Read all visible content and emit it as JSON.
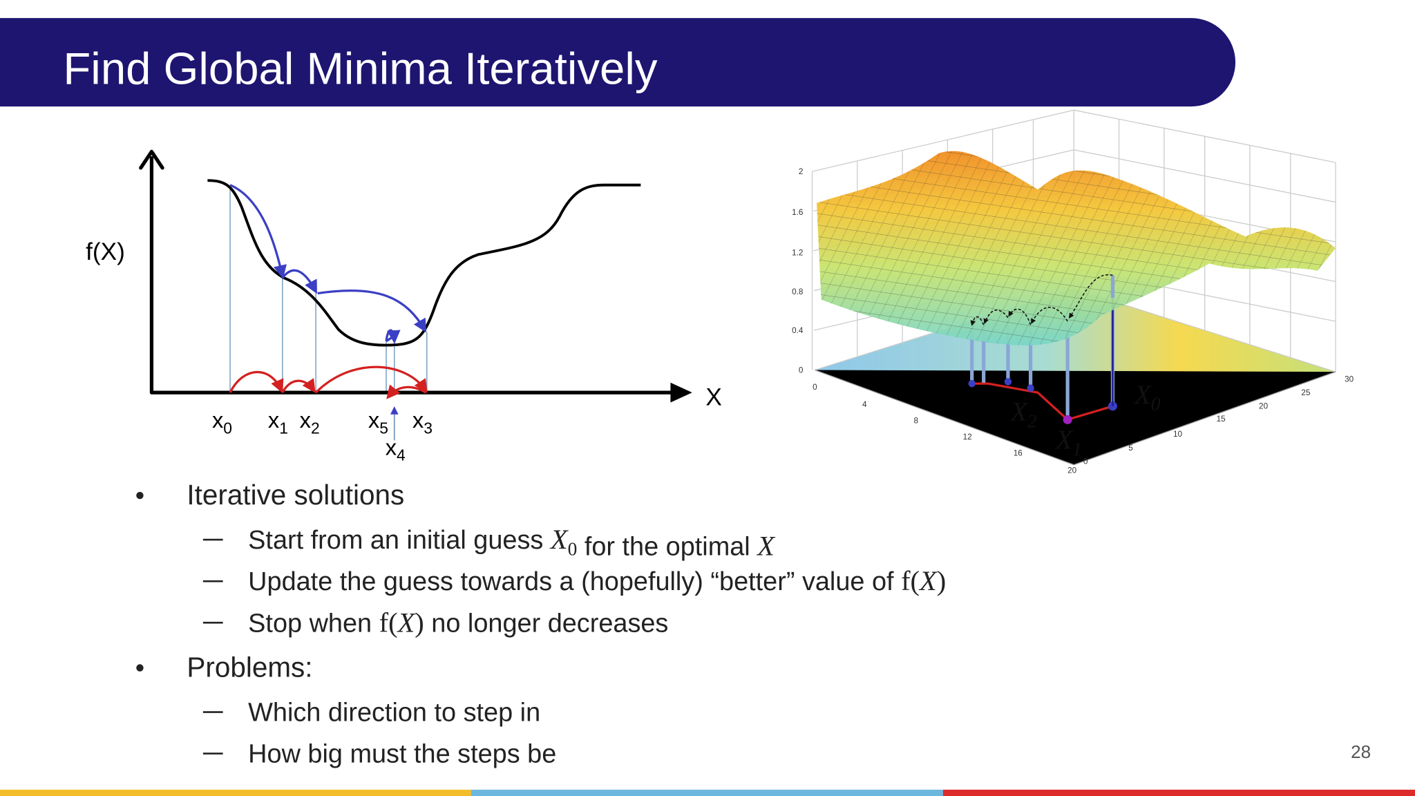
{
  "header": {
    "title": "Find Global Minima Iteratively"
  },
  "diagram": {
    "y_label": "f(X)",
    "x_label": "X",
    "points": [
      {
        "name": "x",
        "sub": "0"
      },
      {
        "name": "x",
        "sub": "1"
      },
      {
        "name": "x",
        "sub": "2"
      },
      {
        "name": "x",
        "sub": "5"
      },
      {
        "name": "x",
        "sub": "3"
      },
      {
        "name": "x",
        "sub": "4"
      }
    ]
  },
  "surface_plot": {
    "z_ticks": [
      "2",
      "1.6",
      "1.2",
      "0.8",
      "0.4",
      "0"
    ],
    "x_ticks": [
      "0",
      "4",
      "8",
      "12",
      "16",
      "20"
    ],
    "y_ticks": [
      "0",
      "5",
      "10",
      "15",
      "20",
      "25",
      "30"
    ],
    "labels": [
      {
        "name": "X",
        "sub": "0"
      },
      {
        "name": "X",
        "sub": "1"
      },
      {
        "name": "X",
        "sub": "2"
      }
    ]
  },
  "bullets": [
    {
      "text": "Iterative solutions",
      "items": [
        [
          "Start from an initial guess ",
          {
            "math": "X",
            "sub": "0"
          },
          " for the optimal ",
          {
            "math": "X"
          }
        ],
        [
          "Update the guess towards a (hopefully) “better” value of ",
          "f(",
          {
            "math": "X"
          },
          ")"
        ],
        [
          "Stop when ",
          "f(",
          {
            "math": "X"
          },
          ")",
          " no longer decreases"
        ]
      ]
    },
    {
      "text": "Problems:",
      "items": [
        [
          "Which direction to step in"
        ],
        [
          "How big must the steps be"
        ]
      ]
    }
  ],
  "page_number": "28"
}
